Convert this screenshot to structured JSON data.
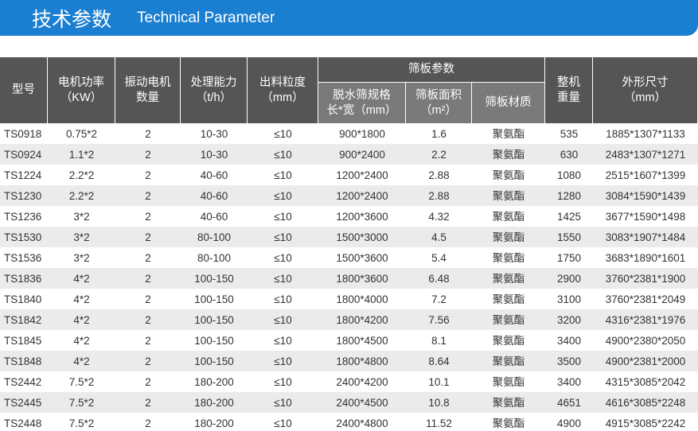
{
  "header": {
    "title": "技术参数",
    "subtitle": "Technical Parameter"
  },
  "table": {
    "group": "筛板参数",
    "columns": [
      [
        "型号"
      ],
      [
        "电机功率",
        "（KW）"
      ],
      [
        "振动电机",
        "数量"
      ],
      [
        "处理能力",
        "（t/h）"
      ],
      [
        "出料粒度",
        "（mm）"
      ],
      [
        "脱水筛规格",
        "长*宽（mm）"
      ],
      [
        "筛板面积",
        "（m²）"
      ],
      [
        "筛板材质"
      ],
      [
        "整机",
        "重量"
      ],
      [
        "外形尺寸",
        "（mm）"
      ]
    ],
    "rows": [
      [
        "TS0918",
        "0.75*2",
        "2",
        "10-30",
        "≤10",
        "900*1800",
        "1.6",
        "聚氨酯",
        "535",
        "1885*1307*1133"
      ],
      [
        "TS0924",
        "1.1*2",
        "2",
        "10-30",
        "≤10",
        "900*2400",
        "2.2",
        "聚氨酯",
        "630",
        "2483*1307*1271"
      ],
      [
        "TS1224",
        "2.2*2",
        "2",
        "40-60",
        "≤10",
        "1200*2400",
        "2.88",
        "聚氨酯",
        "1080",
        "2515*1607*1399"
      ],
      [
        "TS1230",
        "2.2*2",
        "2",
        "40-60",
        "≤10",
        "1200*2400",
        "2.88",
        "聚氨酯",
        "1280",
        "3084*1590*1439"
      ],
      [
        "TS1236",
        "3*2",
        "2",
        "40-60",
        "≤10",
        "1200*3600",
        "4.32",
        "聚氨酯",
        "1425",
        "3677*1590*1498"
      ],
      [
        "TS1530",
        "3*2",
        "2",
        "80-100",
        "≤10",
        "1500*3000",
        "4.5",
        "聚氨酯",
        "1550",
        "3083*1907*1484"
      ],
      [
        "TS1536",
        "3*2",
        "2",
        "80-100",
        "≤10",
        "1500*3600",
        "5.4",
        "聚氨酯",
        "1750",
        "3683*1890*1601"
      ],
      [
        "TS1836",
        "4*2",
        "2",
        "100-150",
        "≤10",
        "1800*3600",
        "6.48",
        "聚氨酯",
        "2900",
        "3760*2381*1900"
      ],
      [
        "TS1840",
        "4*2",
        "2",
        "100-150",
        "≤10",
        "1800*4000",
        "7.2",
        "聚氨酯",
        "3100",
        "3760*2381*2049"
      ],
      [
        "TS1842",
        "4*2",
        "2",
        "100-150",
        "≤10",
        "1800*4200",
        "7.56",
        "聚氨酯",
        "3200",
        "4316*2381*1976"
      ],
      [
        "TS1845",
        "4*2",
        "2",
        "100-150",
        "≤10",
        "1800*4500",
        "8.1",
        "聚氨酯",
        "3400",
        "4900*2380*2050"
      ],
      [
        "TS1848",
        "4*2",
        "2",
        "100-150",
        "≤10",
        "1800*4800",
        "8.64",
        "聚氨酯",
        "3500",
        "4900*2381*2000"
      ],
      [
        "TS2442",
        "7.5*2",
        "2",
        "180-200",
        "≤10",
        "2400*4200",
        "10.1",
        "聚氨酯",
        "3400",
        "4315*3085*2042"
      ],
      [
        "TS2445",
        "7.5*2",
        "2",
        "180-200",
        "≤10",
        "2400*4500",
        "10.8",
        "聚氨酯",
        "4651",
        "4616*3085*2248"
      ],
      [
        "TS2448",
        "7.5*2",
        "2",
        "180-200",
        "≤10",
        "2400*4800",
        "11.52",
        "聚氨酯",
        "4900",
        "4915*3085*2242"
      ]
    ]
  }
}
